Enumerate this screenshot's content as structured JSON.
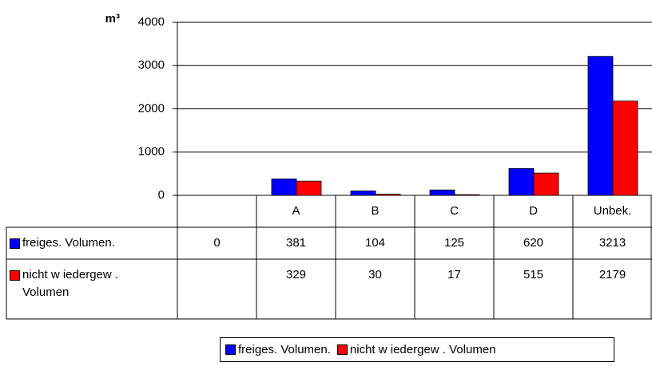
{
  "chart_data": {
    "type": "bar",
    "y_label": "m³",
    "categories": [
      null,
      "A",
      "B",
      "C",
      "D",
      "Unbek."
    ],
    "series": [
      {
        "name": "freiges. Volumen.",
        "color": "#0000ff",
        "values": [
          0,
          381,
          104,
          125,
          620,
          3213
        ]
      },
      {
        "name": "nicht w iedergew . Volumen",
        "color": "#ff0000",
        "values": [
          null,
          329,
          30,
          17,
          515,
          2179
        ]
      }
    ],
    "ylim": [
      0,
      4000
    ],
    "yticks": [
      0,
      1000,
      2000,
      3000,
      4000
    ],
    "grid": true,
    "legend": "bottom"
  }
}
